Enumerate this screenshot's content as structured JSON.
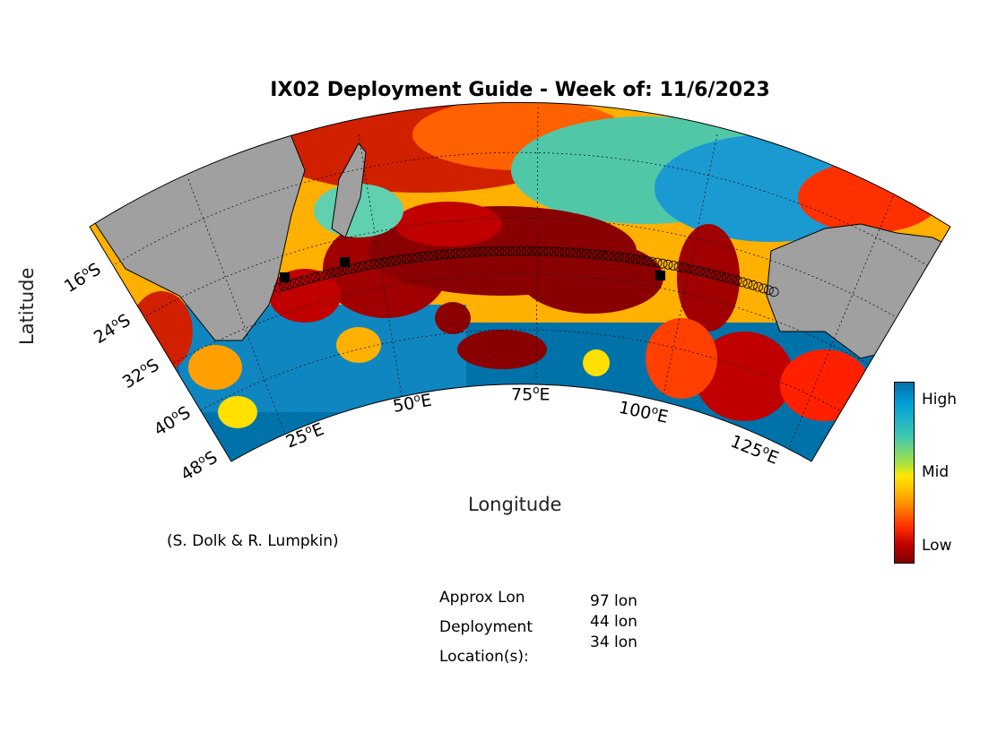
{
  "title": "IX02 Deployment Guide - Week of: 11/6/2023",
  "axes": {
    "xlabel": "Longitude",
    "ylabel": "Latitude",
    "lon_ticks": [
      "25",
      "50",
      "75",
      "100",
      "125"
    ],
    "lon_suffix": "E",
    "lat_ticks": [
      "16",
      "24",
      "32",
      "40",
      "48"
    ],
    "lat_suffix": "S",
    "degree_mark": "o"
  },
  "colorbar": {
    "labels": {
      "high": "High",
      "mid": "Mid",
      "low": "Low"
    },
    "colors": [
      "#0070a8",
      "#40c8b0",
      "#ffe800",
      "#ff3000",
      "#800000"
    ]
  },
  "credit": "(S. Dolk & R. Lumpkin)",
  "deployment": {
    "header_lines": [
      "Approx Lon",
      "Deployment",
      "Location(s):"
    ],
    "locations": [
      "97 lon",
      "44 lon",
      "34 lon"
    ]
  },
  "colors": {
    "land": "#a0a0a0",
    "ocean_high": "#0070a8",
    "ocean_low": "#800000"
  }
}
